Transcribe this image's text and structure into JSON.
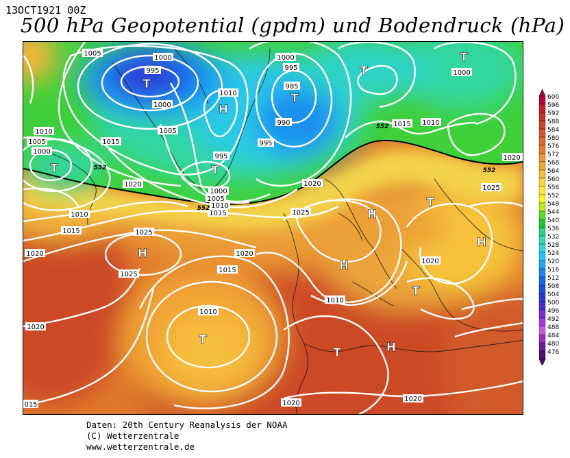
{
  "header": {
    "date": "13OCT1921 00Z",
    "title": "500 hPa Geopotential (gpdm) und Bodendruck (hPa)"
  },
  "colorbar": {
    "labels": [
      "600",
      "596",
      "592",
      "588",
      "584",
      "580",
      "576",
      "572",
      "568",
      "564",
      "560",
      "556",
      "552",
      "548",
      "544",
      "540",
      "536",
      "532",
      "528",
      "524",
      "520",
      "516",
      "512",
      "508",
      "504",
      "500",
      "496",
      "492",
      "488",
      "484",
      "480",
      "476"
    ],
    "colors": [
      "#b0063a",
      "#c31b2b",
      "#c8302a",
      "#c9452a",
      "#d2562a",
      "#da6a2a",
      "#e17d2a",
      "#e89430",
      "#eea837",
      "#f4bb3b",
      "#fad43c",
      "#fde83a",
      "#f7f71f",
      "#b7ec1f",
      "#5ddc23",
      "#22c831",
      "#2bd67c",
      "#33dcae",
      "#2dd3d1",
      "#1fc4ef",
      "#1aa8f3",
      "#1a86f0",
      "#1a66e8",
      "#1d4ce0",
      "#2a35d8",
      "#4b2bd0",
      "#7a2bd0",
      "#a33bd6",
      "#c85be0",
      "#9a2fbf",
      "#6e1b9a",
      "#4a0f6e"
    ]
  },
  "map": {
    "isobar_labels": [
      {
        "text": "1005"
      },
      {
        "text": "1000"
      },
      {
        "text": "995"
      },
      {
        "text": "1000"
      },
      {
        "text": "1005"
      },
      {
        "text": "1010"
      },
      {
        "text": "1005"
      },
      {
        "text": "1000"
      },
      {
        "text": "1015"
      },
      {
        "text": "1010"
      },
      {
        "text": "995"
      },
      {
        "text": "1000"
      },
      {
        "text": "1005"
      },
      {
        "text": "1010"
      },
      {
        "text": "1015"
      },
      {
        "text": "1000"
      },
      {
        "text": "995"
      },
      {
        "text": "985"
      },
      {
        "text": "990"
      },
      {
        "text": "995"
      },
      {
        "text": "1015"
      },
      {
        "text": "1010"
      },
      {
        "text": "1000"
      },
      {
        "text": "1020"
      },
      {
        "text": "1020"
      },
      {
        "text": "1025"
      },
      {
        "text": "1020"
      },
      {
        "text": "1025"
      },
      {
        "text": "1020"
      },
      {
        "text": "1010"
      },
      {
        "text": "1015"
      },
      {
        "text": "1020"
      },
      {
        "text": "1025"
      },
      {
        "text": "1025"
      },
      {
        "text": "1020"
      },
      {
        "text": "1015"
      },
      {
        "text": "1010"
      },
      {
        "text": "1020"
      },
      {
        "text": "015"
      },
      {
        "text": "1020"
      },
      {
        "text": "1020"
      },
      {
        "text": "1010"
      }
    ],
    "contour_labels": [
      {
        "text": "552"
      },
      {
        "text": "552"
      },
      {
        "text": "552"
      },
      {
        "text": "552"
      }
    ],
    "pressure_centers": [
      {
        "type": "T"
      },
      {
        "type": "H"
      },
      {
        "type": "T"
      },
      {
        "type": "T"
      },
      {
        "type": "T"
      },
      {
        "type": "T"
      },
      {
        "type": "H"
      },
      {
        "type": "H"
      },
      {
        "type": "H"
      },
      {
        "type": "H"
      },
      {
        "type": "T"
      },
      {
        "type": "T"
      },
      {
        "type": "T"
      },
      {
        "type": "H"
      },
      {
        "type": "T"
      },
      {
        "type": "T"
      }
    ]
  },
  "footer": {
    "line1": "Daten: 20th Century Reanalysis der NOAA",
    "line2": "(C) Wetterzentrale",
    "line3": "www.wetterzentrale.de"
  }
}
